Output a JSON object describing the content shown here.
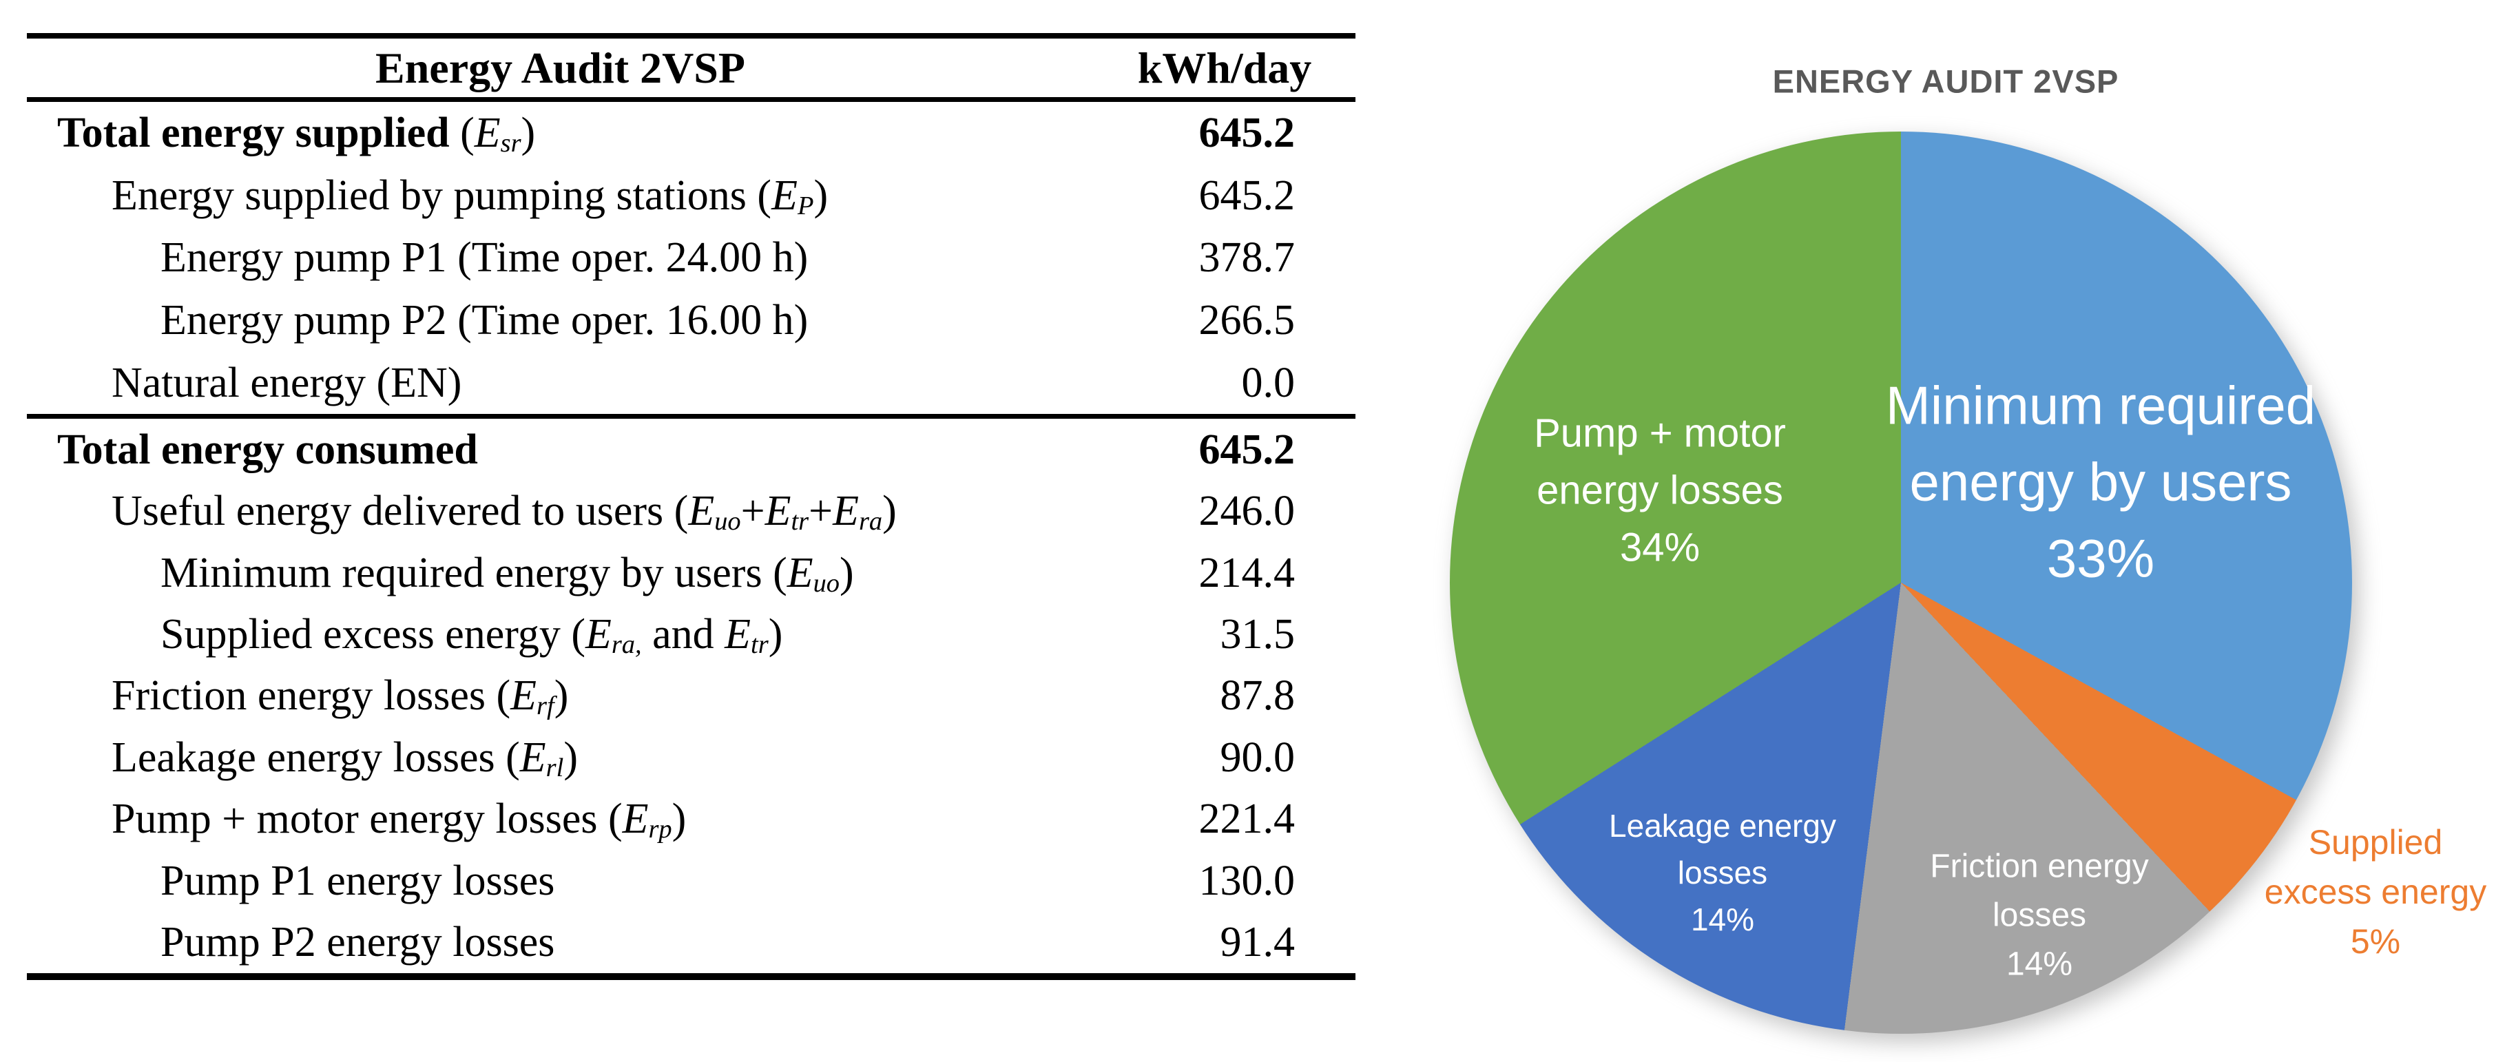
{
  "table": {
    "title": "Energy Audit 2VSP",
    "unit": "kWh/day",
    "rows": [
      {
        "section": "a",
        "indent": 0,
        "bold": true,
        "text": "Total energy supplied (Esr)",
        "value": "645.2",
        "parts": [
          {
            "k": "bold",
            "t": "Total energy supplied "
          },
          {
            "k": "plain",
            "t": "("
          },
          {
            "k": "var",
            "t": "E"
          },
          {
            "k": "sub",
            "t": "sr"
          },
          {
            "k": "plain",
            "t": ")"
          }
        ]
      },
      {
        "section": "a",
        "indent": 1,
        "bold": false,
        "text": "Energy supplied by pumping stations (EP)",
        "value": "645.2",
        "parts": [
          {
            "k": "plain",
            "t": "Energy supplied by pumping stations ("
          },
          {
            "k": "var",
            "t": "E"
          },
          {
            "k": "sub",
            "t": "P"
          },
          {
            "k": "plain",
            "t": ")"
          }
        ]
      },
      {
        "section": "a",
        "indent": 2,
        "bold": false,
        "text": "Energy pump P1 (Time oper. 24.00 h)",
        "value": "378.7",
        "parts": [
          {
            "k": "plain",
            "t": "Energy pump P1 (Time oper. 24.00 h)"
          }
        ]
      },
      {
        "section": "a",
        "indent": 2,
        "bold": false,
        "text": "Energy pump P2 (Time oper. 16.00 h)",
        "value": "266.5",
        "parts": [
          {
            "k": "plain",
            "t": "Energy pump P2 (Time oper. 16.00 h)"
          }
        ]
      },
      {
        "section": "a",
        "indent": 1,
        "bold": false,
        "text": "Natural energy (EN)",
        "value": "0.0",
        "parts": [
          {
            "k": "plain",
            "t": "Natural energy (EN)"
          }
        ]
      },
      {
        "section": "b",
        "indent": 0,
        "bold": true,
        "text": "Total energy consumed",
        "value": "645.2",
        "parts": [
          {
            "k": "bold",
            "t": "Total energy consumed"
          }
        ]
      },
      {
        "section": "b",
        "indent": 1,
        "bold": false,
        "text": "Useful energy delivered to users (Euo+Etr+Era)",
        "value": "246.0",
        "parts": [
          {
            "k": "plain",
            "t": "Useful energy delivered to users ("
          },
          {
            "k": "var",
            "t": "E"
          },
          {
            "k": "sub",
            "t": "uo"
          },
          {
            "k": "plain",
            "t": "+"
          },
          {
            "k": "var",
            "t": "E"
          },
          {
            "k": "sub",
            "t": "tr"
          },
          {
            "k": "plain",
            "t": "+"
          },
          {
            "k": "var",
            "t": "E"
          },
          {
            "k": "sub",
            "t": "ra"
          },
          {
            "k": "plain",
            "t": ")"
          }
        ]
      },
      {
        "section": "b",
        "indent": 2,
        "bold": false,
        "text": "Minimum required energy by users (Euo)",
        "value": "214.4",
        "parts": [
          {
            "k": "plain",
            "t": "Minimum required energy by users ("
          },
          {
            "k": "var",
            "t": "E"
          },
          {
            "k": "sub",
            "t": "uo"
          },
          {
            "k": "plain",
            "t": ")"
          }
        ]
      },
      {
        "section": "b",
        "indent": 2,
        "bold": false,
        "text": "Supplied excess energy (Era, and Etr)",
        "value": "31.5",
        "parts": [
          {
            "k": "plain",
            "t": "Supplied excess energy ("
          },
          {
            "k": "var",
            "t": "E"
          },
          {
            "k": "sub",
            "t": "ra,"
          },
          {
            "k": "plain",
            "t": " and "
          },
          {
            "k": "var",
            "t": "E"
          },
          {
            "k": "sub",
            "t": "tr"
          },
          {
            "k": "plain",
            "t": ")"
          }
        ]
      },
      {
        "section": "b",
        "indent": 1,
        "bold": false,
        "text": "Friction energy losses (Erf)",
        "value": "87.8",
        "parts": [
          {
            "k": "plain",
            "t": "Friction energy losses ("
          },
          {
            "k": "var",
            "t": "E"
          },
          {
            "k": "sub",
            "t": "rf"
          },
          {
            "k": "plain",
            "t": ")"
          }
        ]
      },
      {
        "section": "b",
        "indent": 1,
        "bold": false,
        "text": "Leakage energy losses (Erl)",
        "value": "90.0",
        "parts": [
          {
            "k": "plain",
            "t": "Leakage energy losses ("
          },
          {
            "k": "var",
            "t": "E"
          },
          {
            "k": "sub",
            "t": "rl"
          },
          {
            "k": "plain",
            "t": ")"
          }
        ]
      },
      {
        "section": "b",
        "indent": 1,
        "bold": false,
        "text": "Pump + motor energy losses (Erp)",
        "value": "221.4",
        "parts": [
          {
            "k": "plain",
            "t": "Pump + motor energy losses ("
          },
          {
            "k": "var",
            "t": "E"
          },
          {
            "k": "sub",
            "t": "rp"
          },
          {
            "k": "plain",
            "t": ")"
          }
        ]
      },
      {
        "section": "b",
        "indent": 2,
        "bold": false,
        "text": "Pump P1 energy losses",
        "value": "130.0",
        "parts": [
          {
            "k": "plain",
            "t": "Pump P1 energy losses"
          }
        ]
      },
      {
        "section": "b",
        "indent": 2,
        "bold": false,
        "text": "Pump P2 energy losses",
        "value": "91.4",
        "parts": [
          {
            "k": "plain",
            "t": "Pump P2 energy losses"
          }
        ]
      }
    ]
  },
  "chart_data": {
    "type": "pie",
    "title": "ENERGY AUDIT 2VSP",
    "title_color": "#595959",
    "start_angle_deg": 0,
    "direction": "clockwise",
    "legend": "none",
    "slices": [
      {
        "label": "Minimum required energy by users",
        "pct": 33,
        "color": "#5B9BD5",
        "label_color": "#FFFFFF",
        "label_position": "inside",
        "label_lines": [
          "Minimum required",
          "energy by users",
          "33%"
        ]
      },
      {
        "label": "Supplied excess energy",
        "pct": 5,
        "color": "#ED7D31",
        "label_color": "#ED7D31",
        "label_position": "outside",
        "label_lines": [
          "Supplied",
          "excess energy",
          "5%"
        ]
      },
      {
        "label": "Friction energy losses",
        "pct": 14,
        "color": "#A5A5A5",
        "label_color": "#FFFFFF",
        "label_position": "inside",
        "label_lines": [
          "Friction energy",
          "losses",
          "14%"
        ]
      },
      {
        "label": "Leakage energy losses",
        "pct": 14,
        "color": "#4472C4",
        "label_color": "#FFFFFF",
        "label_position": "inside",
        "label_lines": [
          "Leakage energy",
          "losses",
          "14%"
        ]
      },
      {
        "label": "Pump + motor energy losses",
        "pct": 34,
        "color": "#70AD47",
        "label_color": "#FFFFFF",
        "label_position": "inside",
        "label_lines": [
          "Pump + motor",
          "energy losses",
          "34%"
        ]
      }
    ]
  }
}
